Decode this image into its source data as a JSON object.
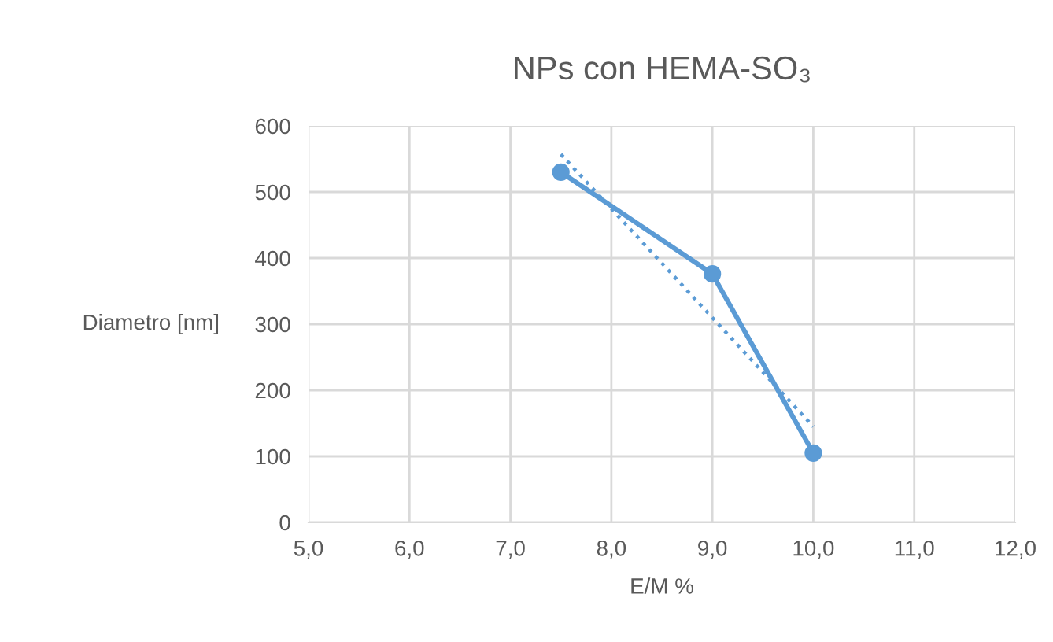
{
  "chart_data": {
    "type": "line",
    "title": "NPs con HEMA-SO₃",
    "xlabel": "E/M %",
    "ylabel": "Diametro [nm]",
    "x": [
      7.5,
      9.0,
      10.0
    ],
    "series": [
      {
        "color": "#5b9bd5",
        "values": [
          530,
          376,
          105
        ],
        "marker": "circle",
        "line_style": "solid"
      },
      {
        "type": "line",
        "color": "#5b9bd5",
        "x": [
          7.5,
          10.0
        ],
        "values": [
          557,
          145
        ],
        "marker": "none",
        "line_style": "dotted"
      }
    ],
    "xlim": [
      5,
      12
    ],
    "xticks": [
      {
        "value": 5,
        "label": "5,0"
      },
      {
        "value": 6,
        "label": "6,0"
      },
      {
        "value": 7,
        "label": "7,0"
      },
      {
        "value": 8,
        "label": "8,0"
      },
      {
        "value": 9,
        "label": "9,0"
      },
      {
        "value": 10,
        "label": "10,0"
      },
      {
        "value": 11,
        "label": "11,0"
      },
      {
        "value": 12,
        "label": "12,0"
      }
    ],
    "ylim": [
      0,
      600
    ],
    "yticks": [
      0,
      100,
      200,
      300,
      400,
      500,
      600
    ],
    "grid": true
  }
}
